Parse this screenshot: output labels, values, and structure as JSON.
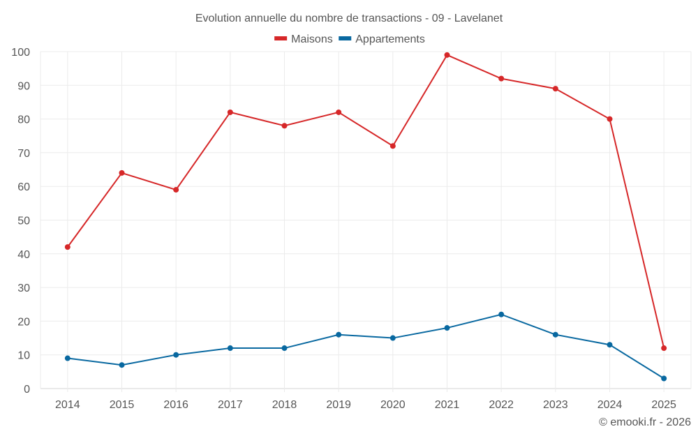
{
  "chart_data": {
    "type": "line",
    "title": "Evolution annuelle du nombre de transactions - 09 - Lavelanet",
    "xlabel": "",
    "ylabel": "",
    "categories": [
      "2014",
      "2015",
      "2016",
      "2017",
      "2018",
      "2019",
      "2020",
      "2021",
      "2022",
      "2023",
      "2024",
      "2025"
    ],
    "series": [
      {
        "name": "Maisons",
        "color": "#d62728",
        "values": [
          42,
          64,
          59,
          82,
          78,
          82,
          72,
          99,
          92,
          89,
          80,
          12
        ]
      },
      {
        "name": "Appartements",
        "color": "#0868a0",
        "values": [
          9,
          7,
          10,
          12,
          12,
          16,
          15,
          18,
          22,
          16,
          13,
          3
        ]
      }
    ],
    "ylim": [
      0,
      100
    ],
    "yticks": [
      0,
      10,
      20,
      30,
      40,
      50,
      60,
      70,
      80,
      90,
      100
    ],
    "grid": true,
    "legend": "top-center",
    "credit": "© emooki.fr - 2026"
  }
}
